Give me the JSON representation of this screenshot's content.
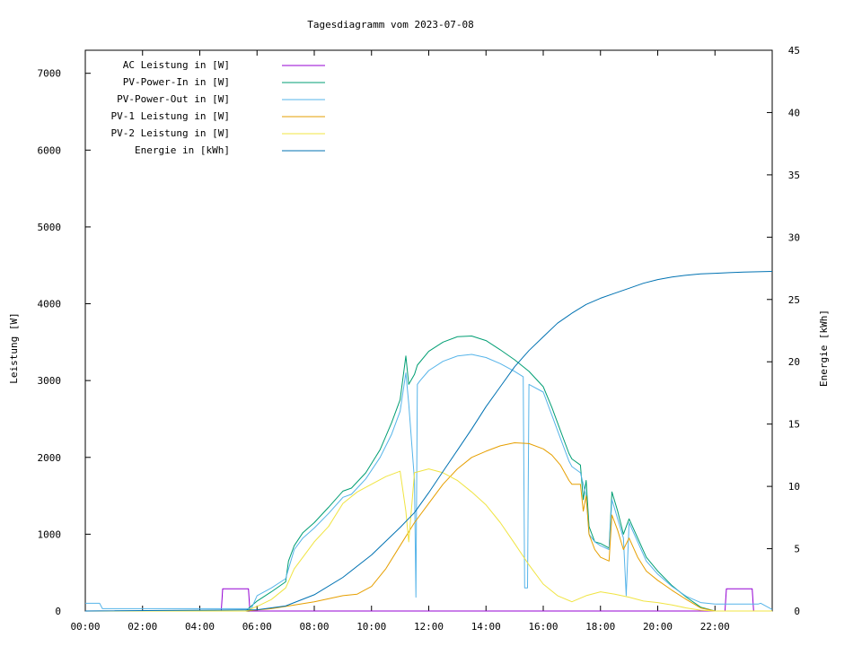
{
  "chart_data": {
    "type": "line",
    "title": "Tagesdiagramm vom 2023-07-08",
    "ylabel": "Leistung [W]",
    "y2label": "Energie [kWh]",
    "xlim": [
      0,
      24
    ],
    "ylim": [
      0,
      7300
    ],
    "y2lim": [
      0,
      45
    ],
    "xticks": [
      "00:00",
      "02:00",
      "04:00",
      "06:00",
      "08:00",
      "10:00",
      "12:00",
      "14:00",
      "16:00",
      "18:00",
      "20:00",
      "22:00"
    ],
    "yticks": [
      0,
      1000,
      2000,
      3000,
      4000,
      5000,
      6000,
      7000
    ],
    "y2ticks": [
      0,
      5,
      10,
      15,
      20,
      25,
      30,
      35,
      40,
      45
    ],
    "legend_position": "top-left",
    "grid": false,
    "series": [
      {
        "name": "AC Leistung in [W]",
        "axis": "left",
        "color": "#9400d3",
        "x": [
          0,
          4.75,
          4.8,
          5.7,
          5.75,
          22.35,
          22.4,
          23.3,
          23.35,
          24
        ],
        "y": [
          0,
          0,
          290,
          290,
          0,
          0,
          290,
          290,
          0,
          0
        ]
      },
      {
        "name": "PV-Power-In in [W]",
        "axis": "left",
        "color": "#009e73",
        "x": [
          0,
          5.6,
          6.0,
          6.5,
          7.0,
          7.1,
          7.3,
          7.6,
          8.0,
          8.5,
          9.0,
          9.3,
          9.8,
          10.3,
          10.7,
          11.0,
          11.2,
          11.3,
          11.5,
          11.6,
          12.0,
          12.5,
          13.0,
          13.5,
          14.0,
          14.5,
          15.0,
          15.5,
          16.0,
          16.3,
          16.6,
          16.9,
          17.0,
          17.3,
          17.4,
          17.5,
          17.6,
          17.8,
          18.0,
          18.3,
          18.4,
          18.6,
          18.8,
          19.0,
          19.3,
          19.6,
          20.0,
          20.5,
          21.0,
          21.5,
          22.0,
          22.3,
          24
        ],
        "y": [
          0,
          0,
          130,
          250,
          380,
          650,
          850,
          1020,
          1150,
          1350,
          1560,
          1600,
          1800,
          2100,
          2450,
          2750,
          3320,
          2950,
          3080,
          3200,
          3380,
          3500,
          3570,
          3580,
          3520,
          3400,
          3270,
          3120,
          2920,
          2650,
          2350,
          2050,
          1980,
          1900,
          1450,
          1700,
          1100,
          900,
          880,
          820,
          1550,
          1300,
          1000,
          1200,
          950,
          700,
          520,
          330,
          180,
          50,
          0,
          0,
          0
        ]
      },
      {
        "name": "PV-Power-Out in [W]",
        "axis": "left",
        "color": "#56b4e9",
        "x": [
          0,
          0.5,
          0.6,
          4.7,
          5.0,
          5.8,
          6.0,
          6.5,
          7.0,
          7.3,
          7.6,
          8.0,
          8.5,
          9.0,
          9.3,
          9.8,
          10.3,
          10.7,
          11.0,
          11.2,
          11.3,
          11.5,
          11.55,
          11.6,
          11.7,
          12.0,
          12.5,
          13.0,
          13.5,
          14.0,
          14.5,
          15.0,
          15.3,
          15.35,
          15.45,
          15.5,
          16.0,
          16.3,
          16.6,
          16.9,
          17.0,
          17.3,
          17.5,
          17.6,
          17.8,
          18.0,
          18.3,
          18.4,
          18.6,
          18.8,
          18.9,
          19.0,
          19.3,
          19.6,
          20.0,
          20.5,
          21.0,
          21.5,
          22.0,
          23.5,
          23.6,
          24
        ],
        "y": [
          100,
          100,
          30,
          30,
          30,
          30,
          200,
          300,
          420,
          800,
          950,
          1080,
          1270,
          1480,
          1520,
          1720,
          2000,
          2300,
          2600,
          3100,
          2700,
          1700,
          180,
          2950,
          3000,
          3130,
          3250,
          3320,
          3340,
          3300,
          3220,
          3120,
          3050,
          300,
          300,
          2950,
          2850,
          2550,
          2250,
          1950,
          1880,
          1800,
          1500,
          1000,
          900,
          850,
          800,
          1450,
          1200,
          950,
          200,
          1150,
          900,
          650,
          480,
          320,
          190,
          110,
          90,
          90,
          100,
          20
        ]
      },
      {
        "name": "PV-1 Leistung in [W]",
        "axis": "left",
        "color": "#e69f00",
        "x": [
          0,
          5.6,
          6.5,
          7.0,
          8.0,
          9.0,
          9.5,
          10.0,
          10.5,
          11.0,
          11.5,
          12.0,
          12.5,
          13.0,
          13.5,
          14.0,
          14.5,
          15.0,
          15.5,
          16.0,
          16.3,
          16.6,
          16.9,
          17.0,
          17.3,
          17.4,
          17.5,
          17.6,
          17.8,
          18.0,
          18.3,
          18.4,
          18.6,
          18.8,
          19.0,
          19.3,
          19.6,
          20.0,
          20.5,
          21.0,
          21.5,
          22.0,
          24
        ],
        "y": [
          0,
          0,
          30,
          60,
          120,
          200,
          220,
          320,
          550,
          850,
          1150,
          1400,
          1650,
          1850,
          2000,
          2080,
          2150,
          2190,
          2180,
          2110,
          2030,
          1900,
          1700,
          1650,
          1650,
          1300,
          1500,
          1000,
          800,
          700,
          650,
          1250,
          1050,
          800,
          950,
          700,
          520,
          400,
          270,
          150,
          40,
          0,
          0
        ]
      },
      {
        "name": "PV-2 Leistung in [W]",
        "axis": "left",
        "color": "#f0e442",
        "x": [
          0,
          5.6,
          6.0,
          6.5,
          7.0,
          7.3,
          7.6,
          8.0,
          8.5,
          9.0,
          9.5,
          10.0,
          10.5,
          11.0,
          11.2,
          11.3,
          11.5,
          12.0,
          12.5,
          13.0,
          13.5,
          14.0,
          14.5,
          15.0,
          15.5,
          16.0,
          16.5,
          17.0,
          17.5,
          18.0,
          18.5,
          19.0,
          19.5,
          20.0,
          20.5,
          21.0,
          21.5,
          22.0,
          24
        ],
        "y": [
          0,
          0,
          60,
          150,
          300,
          550,
          700,
          900,
          1100,
          1400,
          1550,
          1650,
          1750,
          1820,
          1300,
          900,
          1800,
          1850,
          1800,
          1700,
          1550,
          1380,
          1150,
          880,
          600,
          350,
          200,
          120,
          200,
          250,
          220,
          180,
          130,
          110,
          80,
          40,
          10,
          0,
          0
        ]
      },
      {
        "name": "Energie in [kWh]",
        "axis": "right",
        "color": "#0072b2",
        "x": [
          0,
          6.0,
          7.0,
          8.0,
          9.0,
          10.0,
          11.0,
          11.5,
          12.0,
          12.5,
          13.0,
          13.5,
          14.0,
          14.5,
          15.0,
          15.5,
          16.0,
          16.5,
          17.0,
          17.5,
          18.0,
          18.5,
          19.0,
          19.5,
          20.0,
          20.5,
          21.0,
          21.5,
          22.0,
          22.5,
          23.0,
          24
        ],
        "y": [
          0,
          0.1,
          0.4,
          1.3,
          2.7,
          4.5,
          6.7,
          7.9,
          9.5,
          11.2,
          12.9,
          14.6,
          16.4,
          18.0,
          19.6,
          20.9,
          22.0,
          23.1,
          23.9,
          24.6,
          25.1,
          25.5,
          25.9,
          26.3,
          26.6,
          26.8,
          26.95,
          27.05,
          27.1,
          27.15,
          27.2,
          27.25
        ]
      }
    ]
  }
}
